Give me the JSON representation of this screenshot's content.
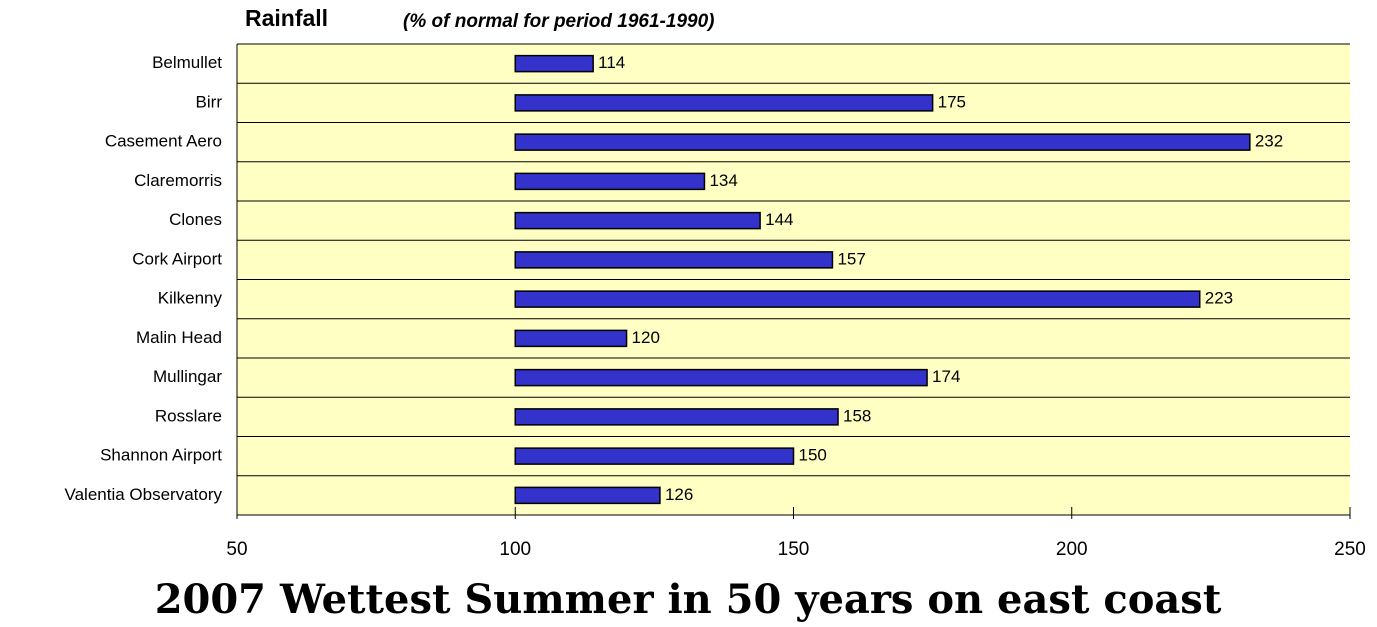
{
  "chart_data": {
    "type": "bar",
    "orientation": "horizontal",
    "title": "Rainfall",
    "subtitle": "(% of normal for period 1961-1990)",
    "caption": "2007 Wettest Summer in 50 years on east coast",
    "categories": [
      "Belmullet",
      "Birr",
      "Casement Aero",
      "Claremorris",
      "Clones",
      "Cork Airport",
      "Kilkenny",
      "Malin Head",
      "Mullingar",
      "Rosslare",
      "Shannon Airport",
      "Valentia Observatory"
    ],
    "values": [
      114,
      175,
      232,
      134,
      144,
      157,
      223,
      120,
      174,
      158,
      150,
      126
    ],
    "bar_base": 100,
    "color": "#3333cc",
    "xlim": [
      50,
      250
    ],
    "xticks": [
      50,
      100,
      150,
      200,
      250
    ]
  }
}
